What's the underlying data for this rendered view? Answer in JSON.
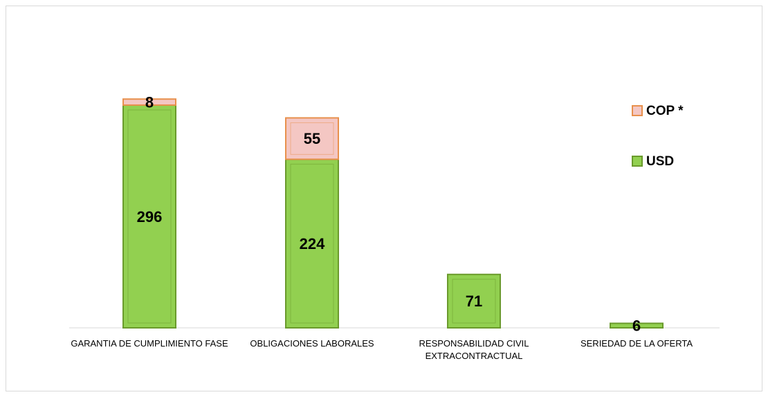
{
  "chart_data": {
    "type": "stacked-bar",
    "categories": [
      "GARANTIA DE CUMPLIMIENTO FASE",
      "OBLIGACIONES LABORALES",
      "RESPONSABILIDAD CIVIL EXTRACONTRACTUAL",
      "SERIEDAD DE LA OFERTA"
    ],
    "series": [
      {
        "name": "USD",
        "color": "#92d050",
        "values": [
          296,
          224,
          71,
          6
        ]
      },
      {
        "name": "COP *",
        "color": "#f4c7c3",
        "values": [
          8,
          55,
          null,
          null
        ]
      }
    ],
    "legend": "right"
  }
}
